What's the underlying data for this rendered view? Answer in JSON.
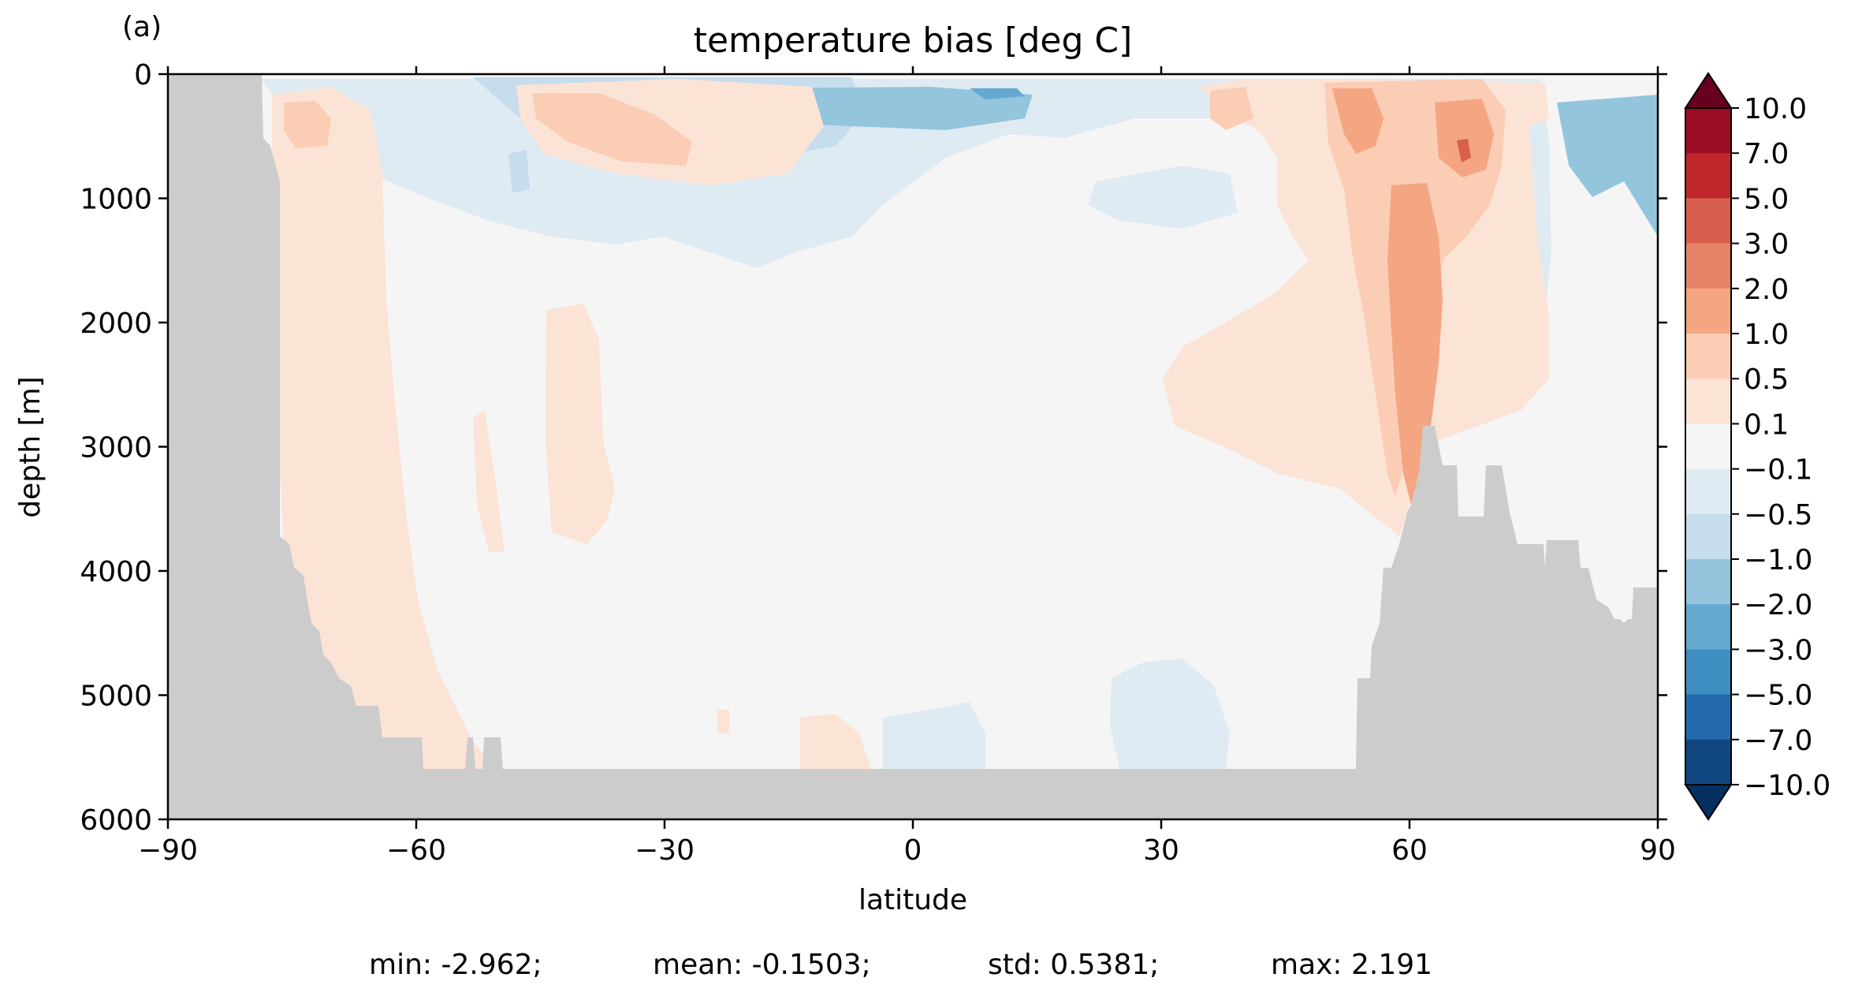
{
  "panel_label": "(a)",
  "chart_data": {
    "type": "heatmap",
    "title": "temperature bias [deg C]",
    "xlabel": "latitude",
    "ylabel": "depth [m]",
    "xlim": [
      -90,
      90
    ],
    "ylim": [
      6000,
      0
    ],
    "xticks": [
      "−90",
      "−60",
      "−30",
      "0",
      "30",
      "60",
      "90"
    ],
    "yticks": [
      "0",
      "1000",
      "2000",
      "3000",
      "4000",
      "5000",
      "6000"
    ],
    "colorbar": {
      "labels": [
        "10.0",
        "7.0",
        "5.0",
        "3.0",
        "2.0",
        "1.0",
        "0.5",
        "0.1",
        "−0.1",
        "−0.5",
        "−1.0",
        "−2.0",
        "−3.0",
        "−5.0",
        "−7.0",
        "−10.0"
      ],
      "colors": [
        "#67001f",
        "#9b0d27",
        "#c0272d",
        "#d6604d",
        "#e58268",
        "#f4a582",
        "#fbcdb5",
        "#fbe3d6",
        "#f5f5f5",
        "#dfebf2",
        "#c5dded",
        "#93c5dd",
        "#66a9d0",
        "#3f8ec1",
        "#2469ab",
        "#114780",
        "#053061"
      ]
    },
    "stats": [
      "min: -2.962;",
      "mean: -0.1503;",
      "std: 0.5381;",
      "max: 2.191"
    ],
    "land_color": "#cccccc",
    "background_color": "#f5f5f5"
  }
}
